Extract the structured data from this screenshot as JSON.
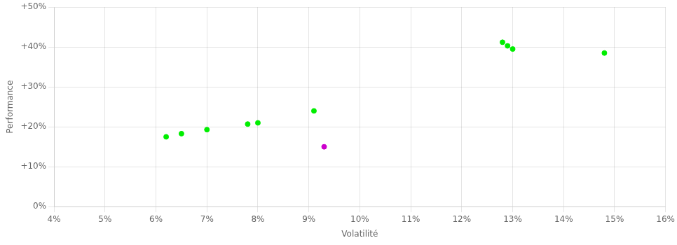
{
  "chart_data": {
    "type": "scatter",
    "xlabel": "Volatilité",
    "ylabel": "Performance",
    "xlim": [
      0.04,
      0.16
    ],
    "ylim": [
      0.0,
      0.5
    ],
    "xticks": [
      {
        "value": 0.04,
        "label": "4%"
      },
      {
        "value": 0.05,
        "label": "5%"
      },
      {
        "value": 0.06,
        "label": "6%"
      },
      {
        "value": 0.07,
        "label": "7%"
      },
      {
        "value": 0.08,
        "label": "8%"
      },
      {
        "value": 0.09,
        "label": "9%"
      },
      {
        "value": 0.1,
        "label": "10%"
      },
      {
        "value": 0.11,
        "label": "11%"
      },
      {
        "value": 0.12,
        "label": "12%"
      },
      {
        "value": 0.13,
        "label": "13%"
      },
      {
        "value": 0.14,
        "label": "14%"
      },
      {
        "value": 0.15,
        "label": "15%"
      },
      {
        "value": 0.16,
        "label": "16%"
      }
    ],
    "yticks": [
      {
        "value": 0.0,
        "label": "0%"
      },
      {
        "value": 0.1,
        "label": "+10%"
      },
      {
        "value": 0.2,
        "label": "+20%"
      },
      {
        "value": 0.3,
        "label": "+30%"
      },
      {
        "value": 0.4,
        "label": "+40%"
      },
      {
        "value": 0.5,
        "label": "+50%"
      }
    ],
    "grid": true,
    "series": [
      {
        "color": "#00ee00",
        "marker": "circle",
        "x": [
          0.062,
          0.065,
          0.07,
          0.078,
          0.08,
          0.091,
          0.128,
          0.129,
          0.13,
          0.148
        ],
        "values": [
          0.175,
          0.183,
          0.193,
          0.207,
          0.21,
          0.24,
          0.412,
          0.403,
          0.395,
          0.385
        ]
      },
      {
        "color": "#cc00cc",
        "marker": "circle",
        "x": [
          0.093
        ],
        "values": [
          0.15
        ]
      }
    ]
  }
}
